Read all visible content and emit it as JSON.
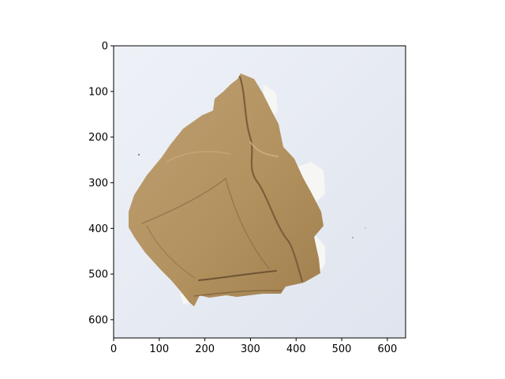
{
  "chart_data": {
    "type": "image",
    "title": "",
    "xlabel": "",
    "ylabel": "",
    "xlim": [
      0,
      640
    ],
    "ylim": [
      640,
      0
    ],
    "x_ticks": [
      0,
      100,
      200,
      300,
      400,
      500,
      600
    ],
    "y_ticks": [
      0,
      100,
      200,
      300,
      400,
      500,
      600
    ],
    "x_tick_labels": [
      "0",
      "100",
      "200",
      "300",
      "400",
      "500",
      "600"
    ],
    "y_tick_labels": [
      "0",
      "100",
      "200",
      "300",
      "400",
      "500",
      "600"
    ],
    "grid": false,
    "image": {
      "subject": "torn brown cardboard box piece",
      "background_color": "#e7ebf3",
      "object_color": "#b7966a",
      "shadow_color": "#8a6d46",
      "tear_color": "#f6f6f4"
    }
  }
}
